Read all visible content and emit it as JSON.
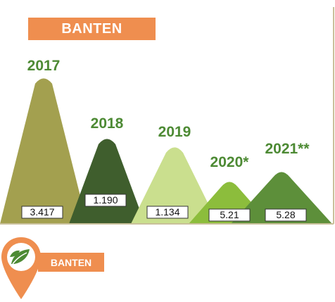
{
  "header": {
    "title": "BANTEN"
  },
  "footer": {
    "label": "BANTEN",
    "icon": "leaf-pin-icon"
  },
  "colors": {
    "accent": "#ef8e4f",
    "year_label": "#4d8a34",
    "frame": "#c9c09a"
  },
  "chart_data": {
    "type": "bar",
    "style": "triangular-peaks",
    "categories": [
      "2017",
      "2018",
      "2019",
      "2020*",
      "2021**"
    ],
    "values": [
      3.417,
      1.19,
      1.134,
      5.21,
      5.28
    ],
    "value_labels": [
      "3.417",
      "1.190",
      "1.134",
      "5.21",
      "5.28"
    ],
    "peak_colors": [
      "#a3a04f",
      "#3f5e2d",
      "#cadf8e",
      "#8cbd3c",
      "#5d8f3a"
    ],
    "title": "",
    "xlabel": "",
    "ylabel": "",
    "grid": false,
    "legend": "none"
  }
}
